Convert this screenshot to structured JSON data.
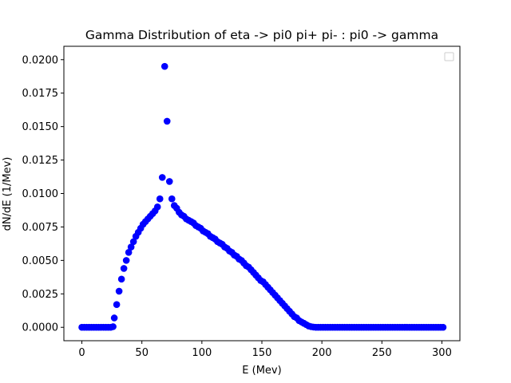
{
  "chart_data": {
    "type": "scatter",
    "title": "Gamma Distribution of eta -> pi0 pi+ pi- : pi0 -> gamma",
    "xlabel": "E (Mev)",
    "ylabel": "dN/dE (1/Mev)",
    "xlim": [
      -15,
      315
    ],
    "ylim": [
      -0.001,
      0.021
    ],
    "xticks": [
      0,
      50,
      100,
      150,
      200,
      250,
      300
    ],
    "xtick_labels": [
      "0",
      "50",
      "100",
      "150",
      "200",
      "250",
      "300"
    ],
    "yticks": [
      0.0,
      0.0025,
      0.005,
      0.0075,
      0.01,
      0.0125,
      0.015,
      0.0175,
      0.02
    ],
    "ytick_labels": [
      "0.0000",
      "0.0025",
      "0.0050",
      "0.0075",
      "0.0100",
      "0.0125",
      "0.0150",
      "0.0175",
      "0.0200"
    ],
    "legend": "top-right",
    "series": [
      {
        "name": "",
        "color": "#0000ff",
        "x": [
          0,
          2,
          4,
          6,
          8,
          10,
          12,
          14,
          16,
          18,
          20,
          22,
          24,
          26,
          27,
          29,
          31,
          33,
          35,
          37,
          39,
          41,
          43,
          45,
          47,
          49,
          51,
          53,
          55,
          57,
          59,
          61,
          63,
          65,
          67,
          69,
          71,
          73,
          75,
          77,
          79,
          81,
          83,
          85,
          87,
          89,
          91,
          93,
          95,
          97,
          99,
          101,
          103,
          105,
          107,
          109,
          111,
          113,
          115,
          117,
          119,
          121,
          123,
          125,
          127,
          129,
          131,
          133,
          135,
          137,
          139,
          141,
          143,
          145,
          147,
          149,
          151,
          153,
          155,
          157,
          159,
          161,
          163,
          165,
          167,
          169,
          171,
          173,
          175,
          177,
          179,
          181,
          183,
          185,
          187,
          189,
          191,
          193,
          195,
          197,
          199,
          201,
          203,
          205,
          207,
          209,
          211,
          213,
          215,
          217,
          219,
          221,
          223,
          225,
          227,
          229,
          231,
          233,
          235,
          237,
          239,
          241,
          243,
          245,
          247,
          249,
          251,
          253,
          255,
          257,
          259,
          261,
          263,
          265,
          267,
          269,
          271,
          273,
          275,
          277,
          279,
          281,
          283,
          285,
          287,
          289,
          291,
          293,
          295,
          297,
          299,
          301
        ],
        "y": [
          0.0,
          0.0,
          0.0,
          0.0,
          0.0,
          0.0,
          0.0,
          0.0,
          0.0,
          0.0,
          0.0,
          0.0,
          0.0,
          5e-05,
          0.0007,
          0.0017,
          0.0027,
          0.0036,
          0.0044,
          0.005,
          0.0056,
          0.006,
          0.0064,
          0.0068,
          0.0071,
          0.0074,
          0.0077,
          0.0079,
          0.0081,
          0.0083,
          0.0085,
          0.0087,
          0.009,
          0.0096,
          0.0112,
          0.0195,
          0.0154,
          0.0109,
          0.0096,
          0.0091,
          0.0089,
          0.0086,
          0.0084,
          0.0083,
          0.0081,
          0.008,
          0.0079,
          0.0078,
          0.0076,
          0.0075,
          0.0074,
          0.0072,
          0.0071,
          0.007,
          0.0068,
          0.0067,
          0.0066,
          0.0064,
          0.0063,
          0.0062,
          0.006,
          0.0059,
          0.0057,
          0.0056,
          0.0054,
          0.0053,
          0.0051,
          0.005,
          0.0048,
          0.0046,
          0.0045,
          0.0043,
          0.0041,
          0.0039,
          0.0037,
          0.0035,
          0.0034,
          0.0032,
          0.003,
          0.0028,
          0.0026,
          0.0024,
          0.0022,
          0.002,
          0.0018,
          0.0016,
          0.0014,
          0.0012,
          0.001,
          0.0008,
          0.0007,
          0.0005,
          0.0004,
          0.0003,
          0.0002,
          0.0001,
          5e-05,
          2e-05,
          0.0,
          0.0,
          0.0,
          0.0,
          0.0,
          0.0,
          0.0,
          0.0,
          0.0,
          0.0,
          0.0,
          0.0,
          0.0,
          0.0,
          0.0,
          0.0,
          0.0,
          0.0,
          0.0,
          0.0,
          0.0,
          0.0,
          0.0,
          0.0,
          0.0,
          0.0,
          0.0,
          0.0,
          0.0,
          0.0,
          0.0,
          0.0,
          0.0,
          0.0,
          0.0,
          0.0,
          0.0,
          0.0,
          0.0,
          0.0,
          0.0,
          0.0,
          0.0,
          0.0,
          0.0,
          0.0,
          0.0,
          0.0,
          0.0,
          0.0,
          0.0,
          0.0,
          0.0,
          0.0
        ]
      }
    ]
  }
}
